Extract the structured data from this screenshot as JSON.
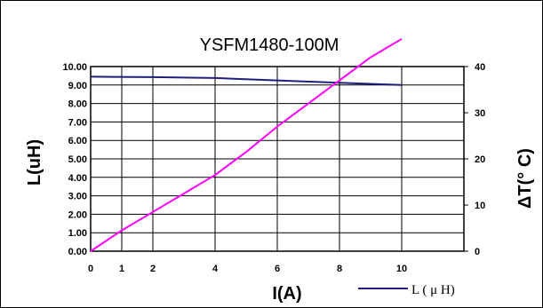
{
  "chart_data": {
    "type": "line",
    "title": "YSFM1480-100M",
    "xlabel": "I(A)",
    "ylabel": "L(uH)",
    "y2label": "ΔT(° C)",
    "xlim": [
      0,
      12
    ],
    "x_ticks": [
      "0",
      "1",
      "2",
      "4",
      "6",
      "8",
      "10"
    ],
    "ylim": [
      0,
      10
    ],
    "y_ticks": [
      "0.00",
      "1.00",
      "2.00",
      "3.00",
      "4.00",
      "5.00",
      "6.00",
      "7.00",
      "8.00",
      "9.00",
      "10.00"
    ],
    "y2lim": [
      0,
      40
    ],
    "y2_ticks": [
      "0",
      "10",
      "20",
      "30",
      "40"
    ],
    "grid": true,
    "legend_position": "bottom-right",
    "series": [
      {
        "name": "L ( μ H)",
        "axis": "left",
        "color": "#1f1f7a",
        "x": [
          0,
          2,
          4,
          6,
          8,
          10
        ],
        "y": [
          9.45,
          9.43,
          9.38,
          9.25,
          9.12,
          9.0
        ]
      },
      {
        "axis": "right",
        "color": "#ff00ff",
        "x": [
          0,
          1,
          2,
          3,
          4,
          5,
          6,
          7,
          8,
          9,
          10
        ],
        "y": [
          0,
          4.5,
          8.5,
          12.5,
          16.5,
          21.5,
          27,
          32,
          37,
          42,
          46
        ]
      }
    ]
  }
}
